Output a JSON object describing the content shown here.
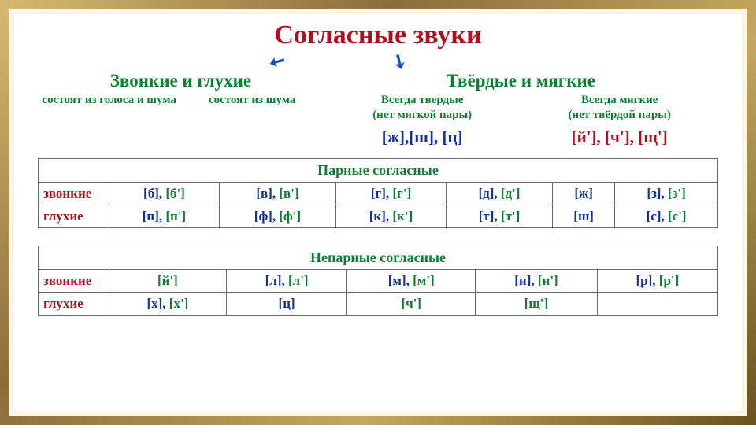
{
  "title": "Согласные звуки",
  "subhead_left": "Звонкие и глухие",
  "subhead_right": "Твёрдые и мягкие",
  "desc1": "состоят из голоса и шума",
  "desc2": "состоят из шума",
  "desc3_line1": "Всегда твердые",
  "desc3_line2": "(нет мягкой пары)",
  "desc4_line1": "Всегда мягкие",
  "desc4_line2": "(нет твёрдой пары)",
  "always_hard": "[ж],[ш], [ц]",
  "always_soft": "[й'],  [ч'],  [щ']",
  "table1": {
    "title": "Парные согласные",
    "row1_label": "звонкие",
    "row2_label": "глухие",
    "voiced": [
      {
        "h": "[б]",
        "s": "[б']"
      },
      {
        "h": "[в]",
        "s": "[в']"
      },
      {
        "h": "[г]",
        "s": "[г']"
      },
      {
        "h": "[д]",
        "s": "[д']"
      },
      {
        "h": "[ж]",
        "s": ""
      },
      {
        "h": "[з]",
        "s": "[з']"
      }
    ],
    "voiceless": [
      {
        "h": "[п]",
        "s": "[п']"
      },
      {
        "h": "[ф]",
        "s": "[ф']"
      },
      {
        "h": "[к]",
        "s": "[к']"
      },
      {
        "h": "[т]",
        "s": "[т']"
      },
      {
        "h": "[ш]",
        "s": ""
      },
      {
        "h": "[с]",
        "s": "[с']"
      }
    ]
  },
  "table2": {
    "title": "Непарные согласные",
    "row1_label": "звонкие",
    "row2_label": "глухие",
    "voiced": [
      {
        "h": "",
        "s": "[й']"
      },
      {
        "h": "[л]",
        "s": "[л']"
      },
      {
        "h": "[м]",
        "s": "[м']"
      },
      {
        "h": "[н]",
        "s": "[н']"
      },
      {
        "h": "[р]",
        "s": "[р']"
      }
    ],
    "voiceless": [
      {
        "h": "[х]",
        "s": "[х']"
      },
      {
        "h": "[ц]",
        "s": ""
      },
      {
        "h": "",
        "s": "[ч']"
      },
      {
        "h": "",
        "s": "[щ']"
      },
      {
        "h": "",
        "s": ""
      }
    ]
  },
  "colors": {
    "title": "#b01020",
    "green": "#0a8030",
    "blue": "#1030a0",
    "frame_gold": "#c4a860",
    "background": "#ffffff"
  },
  "fonts": {
    "title_size": 34,
    "subhead_size": 23,
    "desc_size": 15,
    "phon_size": 21,
    "table_title_size": 18,
    "cell_size": 17
  }
}
